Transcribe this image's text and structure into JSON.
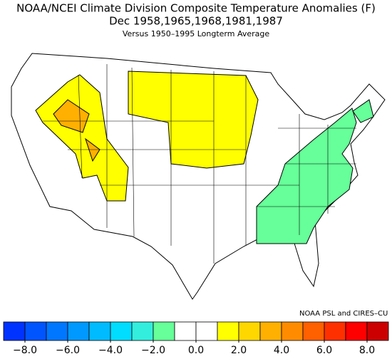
{
  "title": "NOAA/NCEI Climate Division Composite Temperature Anomalies (F)",
  "subtitle": "Dec  1958,1965,1968,1981,1987",
  "baseline": "Versus 1950–1995 Longterm Average",
  "credit": "NOAA PSL and CIRES–CU",
  "colorbar": {
    "lim": [
      -9,
      9
    ],
    "colors": [
      "#0033ff",
      "#0055ff",
      "#0077ff",
      "#0099ff",
      "#00bbff",
      "#00ddff",
      "#33eedd",
      "#66ff99",
      "#ffffff",
      "#ffffff",
      "#ffff00",
      "#ffd700",
      "#ffb000",
      "#ff8c00",
      "#ff6000",
      "#ff3000",
      "#ff0000",
      "#cc0000"
    ],
    "ticks": [
      {
        "value": -8,
        "label": "−8.0"
      },
      {
        "value": -6,
        "label": "−6.0"
      },
      {
        "value": -4,
        "label": "−4.0"
      },
      {
        "value": -2,
        "label": "−2.0"
      },
      {
        "value": 0,
        "label": "0.0"
      },
      {
        "value": 2,
        "label": "2.0"
      },
      {
        "value": 4,
        "label": "4.0"
      },
      {
        "value": 6,
        "label": "6.0"
      },
      {
        "value": 8,
        "label": "8.0"
      }
    ]
  }
}
